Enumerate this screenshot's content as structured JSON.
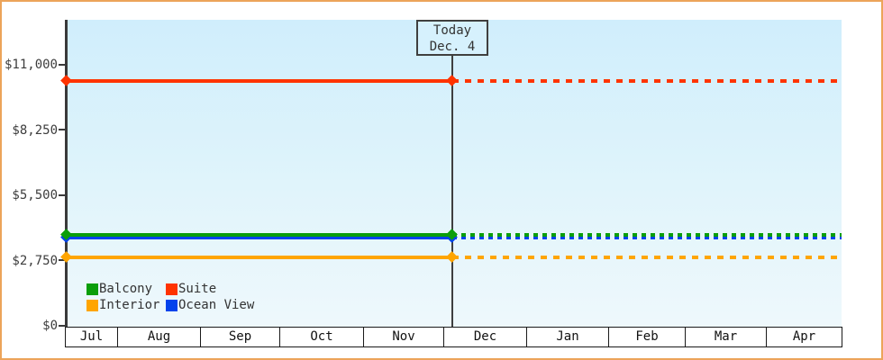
{
  "window": {
    "border_color": "#eca45a",
    "background": "#ffffff"
  },
  "chart_data": {
    "type": "line",
    "title": "",
    "xlabel": "",
    "ylabel": "",
    "currency": "USD",
    "categories": [
      "Jul",
      "Aug",
      "Sep",
      "Oct",
      "Nov",
      "Dec",
      "Jan",
      "Feb",
      "Mar",
      "Apr"
    ],
    "ytick_labels": [
      "$0",
      "$2,750",
      "$5,500",
      "$8,250",
      "$11,000"
    ],
    "ytick_values": [
      0,
      2750,
      5500,
      8250,
      11000
    ],
    "ylim": [
      0,
      11000
    ],
    "grid": false,
    "legend_position": "bottom-left",
    "line_style_note": "each series is a flat horizontal price line: solid with diamond endpoint markers up to the Today marker, dotted projection after it",
    "series": [
      {
        "name": "Suite",
        "color": "#ff3300",
        "price": 10300,
        "dash": 7
      },
      {
        "name": "Ocean View",
        "color": "#0443ec",
        "price": 3700,
        "dash": 5
      },
      {
        "name": "Balcony",
        "color": "#0a9e0a",
        "price": 3850,
        "dash": 5
      },
      {
        "name": "Interior",
        "color": "#ffa500",
        "price": 2880,
        "dash": 7
      }
    ],
    "annotation": {
      "title": "Today",
      "date": "Dec. 4"
    }
  },
  "legend": {
    "items": [
      {
        "label": "Balcony",
        "color": "#0a9e0a"
      },
      {
        "label": "Suite",
        "color": "#ff3300"
      },
      {
        "label": "Interior",
        "color": "#ffa500"
      },
      {
        "label": "Ocean View",
        "color": "#0443ec"
      }
    ]
  }
}
